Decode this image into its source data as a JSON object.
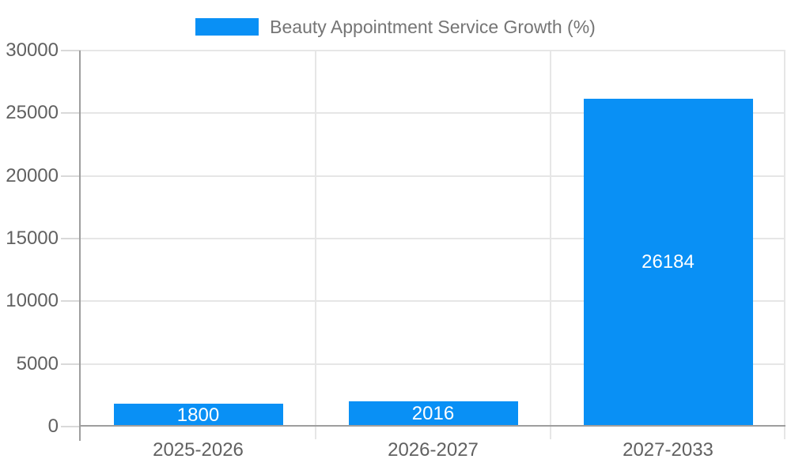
{
  "chart_data": {
    "type": "bar",
    "title": "Beauty Appointment Service Growth (%)",
    "categories": [
      "2025-2026",
      "2026-2027",
      "2027-2033"
    ],
    "values": [
      1800,
      2016,
      26184
    ],
    "bar_labels": [
      "1800",
      "2016",
      "26184"
    ],
    "xlabel": "",
    "ylabel": "",
    "ylim": [
      0,
      30000
    ],
    "yticks": [
      0,
      5000,
      10000,
      15000,
      20000,
      25000,
      30000
    ],
    "grid": true,
    "legend_position": "top-center",
    "colors": {
      "bar": "#0990F5",
      "bar_label": "#FFFFFF",
      "gridline": "#E6E6E6",
      "axis_line": "#9E9E9E",
      "tick": "#D9D9D9",
      "axis_text": "#616161",
      "legend_text": "#757575"
    }
  }
}
